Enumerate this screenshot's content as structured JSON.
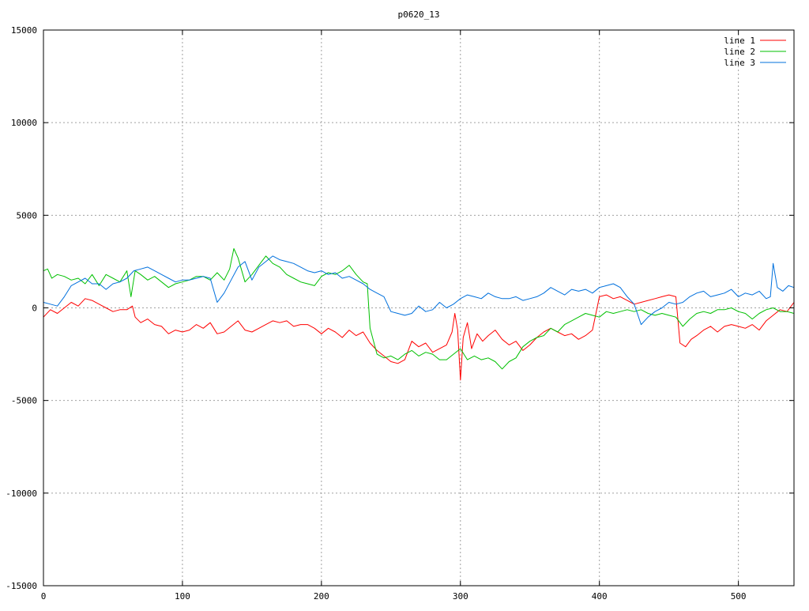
{
  "chart_data": {
    "type": "line",
    "title": "p0620_13",
    "xlabel": "",
    "ylabel": "",
    "xlim": [
      0,
      540
    ],
    "ylim": [
      -15000,
      15000
    ],
    "x_ticks": [
      0,
      100,
      200,
      300,
      400,
      500
    ],
    "y_ticks": [
      -15000,
      -10000,
      -5000,
      0,
      5000,
      10000,
      15000
    ],
    "grid": true,
    "legend_position": "top-right",
    "series": [
      {
        "name": "line 1",
        "color": "#ff0000",
        "x": [
          0,
          5,
          10,
          15,
          20,
          25,
          30,
          35,
          40,
          45,
          50,
          55,
          60,
          64,
          66,
          70,
          75,
          80,
          85,
          90,
          95,
          100,
          105,
          110,
          115,
          120,
          125,
          130,
          135,
          140,
          145,
          150,
          155,
          160,
          165,
          170,
          175,
          180,
          185,
          190,
          195,
          200,
          205,
          210,
          215,
          220,
          225,
          230,
          235,
          240,
          245,
          250,
          255,
          260,
          265,
          270,
          275,
          280,
          285,
          290,
          294,
          296,
          298,
          300,
          302,
          305,
          308,
          312,
          316,
          320,
          325,
          330,
          335,
          340,
          345,
          350,
          355,
          360,
          365,
          370,
          375,
          380,
          385,
          390,
          395,
          400,
          405,
          410,
          415,
          420,
          425,
          430,
          435,
          440,
          445,
          450,
          455,
          458,
          462,
          466,
          470,
          475,
          480,
          485,
          490,
          495,
          500,
          505,
          510,
          515,
          520,
          525,
          530,
          535,
          540
        ],
        "y": [
          -500,
          -100,
          -300,
          0,
          300,
          100,
          500,
          400,
          200,
          0,
          -200,
          -100,
          -100,
          100,
          -500,
          -800,
          -600,
          -900,
          -1000,
          -1400,
          -1200,
          -1300,
          -1200,
          -900,
          -1100,
          -800,
          -1400,
          -1300,
          -1000,
          -700,
          -1200,
          -1300,
          -1100,
          -900,
          -700,
          -800,
          -700,
          -1000,
          -900,
          -900,
          -1100,
          -1400,
          -1100,
          -1300,
          -1600,
          -1200,
          -1500,
          -1300,
          -1900,
          -2300,
          -2600,
          -2900,
          -3000,
          -2800,
          -1800,
          -2100,
          -1900,
          -2400,
          -2200,
          -2000,
          -1300,
          -300,
          -1200,
          -3900,
          -1600,
          -800,
          -2200,
          -1400,
          -1800,
          -1500,
          -1200,
          -1700,
          -2000,
          -1800,
          -2300,
          -2000,
          -1600,
          -1300,
          -1100,
          -1300,
          -1500,
          -1400,
          -1700,
          -1500,
          -1200,
          600,
          700,
          500,
          600,
          400,
          200,
          300,
          400,
          500,
          600,
          700,
          600,
          -1900,
          -2100,
          -1700,
          -1500,
          -1200,
          -1000,
          -1300,
          -1000,
          -900,
          -1000,
          -1100,
          -900,
          -1200,
          -700,
          -400,
          -100,
          -200,
          300
        ]
      },
      {
        "name": "line 2",
        "color": "#00c000",
        "x": [
          0,
          3,
          6,
          10,
          15,
          20,
          25,
          30,
          35,
          40,
          45,
          50,
          55,
          60,
          63,
          66,
          70,
          75,
          80,
          85,
          90,
          95,
          100,
          105,
          110,
          115,
          120,
          125,
          130,
          134,
          137,
          140,
          145,
          150,
          155,
          160,
          165,
          170,
          175,
          180,
          185,
          190,
          195,
          200,
          205,
          210,
          215,
          220,
          225,
          230,
          233,
          235,
          240,
          245,
          250,
          255,
          260,
          265,
          270,
          275,
          280,
          285,
          290,
          295,
          300,
          305,
          310,
          315,
          320,
          325,
          330,
          335,
          340,
          345,
          350,
          355,
          360,
          365,
          370,
          375,
          380,
          385,
          390,
          395,
          400,
          405,
          410,
          415,
          420,
          425,
          430,
          435,
          440,
          445,
          450,
          455,
          460,
          465,
          470,
          475,
          480,
          485,
          490,
          495,
          500,
          505,
          510,
          515,
          520,
          525,
          530,
          535,
          540
        ],
        "y": [
          2000,
          2100,
          1600,
          1800,
          1700,
          1500,
          1600,
          1300,
          1800,
          1200,
          1800,
          1600,
          1400,
          2000,
          600,
          2000,
          1800,
          1500,
          1700,
          1400,
          1100,
          1300,
          1400,
          1500,
          1700,
          1700,
          1500,
          1900,
          1500,
          2100,
          3200,
          2700,
          1400,
          1800,
          2300,
          2800,
          2400,
          2200,
          1800,
          1600,
          1400,
          1300,
          1200,
          1700,
          1900,
          1800,
          2000,
          2300,
          1800,
          1400,
          1300,
          -1100,
          -2500,
          -2700,
          -2600,
          -2800,
          -2500,
          -2300,
          -2600,
          -2400,
          -2500,
          -2800,
          -2800,
          -2500,
          -2200,
          -2800,
          -2600,
          -2800,
          -2700,
          -2900,
          -3300,
          -2900,
          -2700,
          -2100,
          -1800,
          -1600,
          -1500,
          -1100,
          -1300,
          -900,
          -700,
          -500,
          -300,
          -400,
          -500,
          -200,
          -300,
          -200,
          -100,
          -200,
          -100,
          -300,
          -400,
          -300,
          -400,
          -500,
          -1000,
          -600,
          -300,
          -200,
          -300,
          -100,
          -100,
          0,
          -200,
          -300,
          -600,
          -300,
          -100,
          0,
          -200,
          -200,
          -300
        ]
      },
      {
        "name": "line 3",
        "color": "#0070dd",
        "x": [
          0,
          5,
          10,
          15,
          20,
          25,
          30,
          35,
          40,
          45,
          50,
          55,
          60,
          65,
          70,
          75,
          80,
          85,
          90,
          95,
          100,
          105,
          110,
          115,
          120,
          125,
          130,
          135,
          140,
          145,
          150,
          155,
          160,
          165,
          170,
          175,
          180,
          185,
          190,
          195,
          200,
          205,
          210,
          215,
          220,
          225,
          230,
          235,
          240,
          245,
          250,
          255,
          260,
          265,
          270,
          275,
          280,
          285,
          290,
          295,
          300,
          305,
          310,
          315,
          320,
          325,
          330,
          335,
          340,
          345,
          350,
          355,
          360,
          365,
          370,
          375,
          380,
          385,
          390,
          395,
          400,
          405,
          410,
          415,
          420,
          425,
          430,
          435,
          440,
          445,
          450,
          455,
          460,
          465,
          470,
          475,
          480,
          485,
          490,
          495,
          500,
          505,
          510,
          515,
          520,
          523,
          525,
          528,
          532,
          536,
          540
        ],
        "y": [
          300,
          200,
          100,
          600,
          1200,
          1400,
          1600,
          1300,
          1300,
          1000,
          1300,
          1400,
          1600,
          2000,
          2100,
          2200,
          2000,
          1800,
          1600,
          1400,
          1500,
          1500,
          1600,
          1700,
          1600,
          300,
          800,
          1500,
          2200,
          2500,
          1500,
          2200,
          2500,
          2800,
          2600,
          2500,
          2400,
          2200,
          2000,
          1900,
          2000,
          1800,
          1900,
          1600,
          1700,
          1500,
          1300,
          1000,
          800,
          600,
          -200,
          -300,
          -400,
          -300,
          100,
          -200,
          -100,
          300,
          0,
          200,
          500,
          700,
          600,
          500,
          800,
          600,
          500,
          500,
          600,
          400,
          500,
          600,
          800,
          1100,
          900,
          700,
          1000,
          900,
          1000,
          800,
          1100,
          1200,
          1300,
          1100,
          600,
          200,
          -900,
          -500,
          -200,
          0,
          300,
          200,
          300,
          600,
          800,
          900,
          600,
          700,
          800,
          1000,
          600,
          800,
          700,
          900,
          500,
          600,
          2400,
          1100,
          900,
          1200,
          1100
        ]
      }
    ]
  }
}
